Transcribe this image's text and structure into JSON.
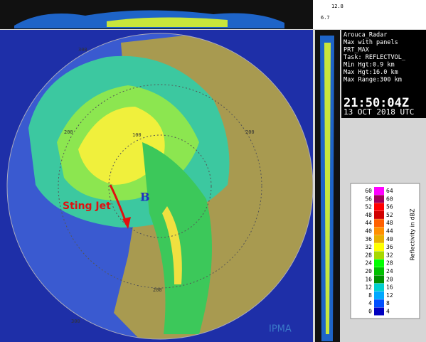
{
  "header": {
    "top_right": [
      "12.8",
      "6.7"
    ]
  },
  "info": {
    "lines": [
      "Arouca_Radar",
      "Max with panels",
      "PRT_MAX",
      "Task: REFLECTVOL_",
      "Min Hgt:0.9 km",
      "Max Hgt:16.0 km",
      "Max Range:300 km"
    ],
    "time": "21:50:04Z",
    "date": "13 OCT 2018 UTC"
  },
  "map": {
    "annotation": "Sting Jet",
    "marker": "B",
    "ring_labels": [
      "300",
      "200",
      "100",
      "200",
      "200",
      "300"
    ],
    "logo": "IPMA"
  },
  "legend": {
    "title": "Reflectivity in dBZ",
    "rows": [
      {
        "low": 60,
        "high": 64,
        "color": "#ff00ff"
      },
      {
        "low": 56,
        "high": 60,
        "color": "#a0005a"
      },
      {
        "low": 52,
        "high": 56,
        "color": "#ff0000"
      },
      {
        "low": 48,
        "high": 52,
        "color": "#d00000"
      },
      {
        "low": 44,
        "high": 48,
        "color": "#ff6000"
      },
      {
        "low": 40,
        "high": 44,
        "color": "#ff9000"
      },
      {
        "low": 36,
        "high": 40,
        "color": "#e8b000"
      },
      {
        "low": 32,
        "high": 36,
        "color": "#ffff00"
      },
      {
        "low": 28,
        "high": 32,
        "color": "#a8d800"
      },
      {
        "low": 24,
        "high": 28,
        "color": "#00ff00"
      },
      {
        "low": 20,
        "high": 24,
        "color": "#00c000"
      },
      {
        "low": 16,
        "high": 20,
        "color": "#009000"
      },
      {
        "low": 12,
        "high": 16,
        "color": "#00d0d0"
      },
      {
        "low": 8,
        "high": 12,
        "color": "#00a8ff"
      },
      {
        "low": 4,
        "high": 8,
        "color": "#0050ff"
      },
      {
        "low": 0,
        "high": 4,
        "color": "#0000c0"
      }
    ]
  }
}
